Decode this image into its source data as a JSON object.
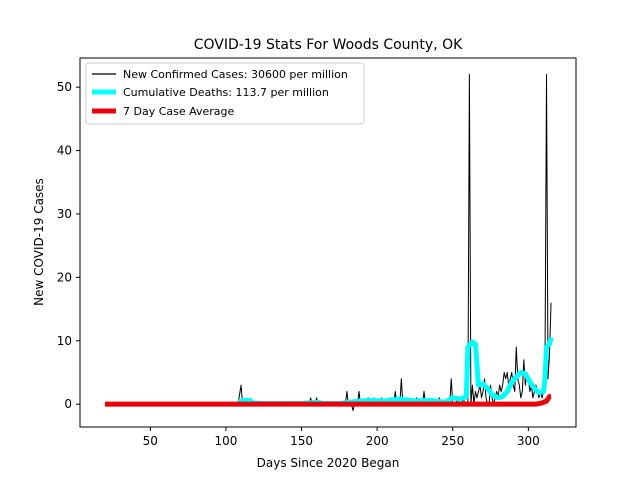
{
  "chart_data": {
    "type": "line",
    "title": "COVID-19 Stats For Woods County, OK",
    "xlabel": "Days Since 2020 Began",
    "ylabel": "New COVID-19 Cases",
    "xlim": [
      3.5,
      331.5
    ],
    "ylim": [
      -3.6,
      54.6
    ],
    "xticks": [
      50,
      100,
      150,
      200,
      250,
      300
    ],
    "yticks": [
      0,
      10,
      20,
      30,
      40,
      50
    ],
    "grid": false,
    "legend_position": "top-left",
    "series": [
      {
        "name": "New Confirmed Cases: 30600 per million",
        "color": "#000000",
        "points": [
          [
            20,
            0
          ],
          [
            108,
            0
          ],
          [
            110,
            3
          ],
          [
            111,
            0
          ],
          [
            112,
            0
          ],
          [
            155,
            0
          ],
          [
            156,
            1
          ],
          [
            157,
            0
          ],
          [
            159,
            0
          ],
          [
            160,
            1
          ],
          [
            161,
            0
          ],
          [
            179,
            0
          ],
          [
            180,
            2
          ],
          [
            181,
            0
          ],
          [
            183,
            0
          ],
          [
            184,
            -1
          ],
          [
            185,
            0
          ],
          [
            187,
            0
          ],
          [
            188,
            2
          ],
          [
            189,
            0
          ],
          [
            193,
            0
          ],
          [
            194,
            1
          ],
          [
            195,
            0
          ],
          [
            197,
            0
          ],
          [
            198,
            1
          ],
          [
            199,
            0
          ],
          [
            202,
            0
          ],
          [
            203,
            1
          ],
          [
            204,
            0
          ],
          [
            207,
            0
          ],
          [
            208,
            1
          ],
          [
            209,
            0
          ],
          [
            211,
            0
          ],
          [
            212,
            2
          ],
          [
            213,
            0
          ],
          [
            215,
            0
          ],
          [
            216,
            4
          ],
          [
            217,
            0
          ],
          [
            219,
            0
          ],
          [
            220,
            1
          ],
          [
            221,
            0
          ],
          [
            225,
            0
          ],
          [
            226,
            1
          ],
          [
            227,
            0
          ],
          [
            230,
            0
          ],
          [
            231,
            2
          ],
          [
            232,
            0
          ],
          [
            240,
            0
          ],
          [
            241,
            1
          ],
          [
            242,
            0
          ],
          [
            246,
            0
          ],
          [
            247,
            1
          ],
          [
            248,
            0
          ],
          [
            249,
            4
          ],
          [
            250,
            0
          ],
          [
            252,
            0
          ],
          [
            253,
            1
          ],
          [
            254,
            0
          ],
          [
            256,
            0
          ],
          [
            257,
            1
          ],
          [
            258,
            0
          ],
          [
            260,
            0
          ],
          [
            261,
            52
          ],
          [
            262,
            0
          ],
          [
            263,
            3
          ],
          [
            264,
            0
          ],
          [
            265,
            2
          ],
          [
            266,
            1
          ],
          [
            267,
            2
          ],
          [
            268,
            3
          ],
          [
            269,
            1
          ],
          [
            270,
            2
          ],
          [
            271,
            4
          ],
          [
            272,
            1
          ],
          [
            273,
            0
          ],
          [
            274,
            0
          ],
          [
            275,
            3
          ],
          [
            276,
            1
          ],
          [
            277,
            0
          ],
          [
            278,
            1
          ],
          [
            279,
            2
          ],
          [
            280,
            1
          ],
          [
            281,
            3
          ],
          [
            282,
            2
          ],
          [
            283,
            3
          ],
          [
            284,
            5
          ],
          [
            285,
            4
          ],
          [
            286,
            5
          ],
          [
            287,
            3
          ],
          [
            288,
            4
          ],
          [
            289,
            5
          ],
          [
            290,
            3
          ],
          [
            291,
            2
          ],
          [
            292,
            9
          ],
          [
            293,
            4
          ],
          [
            294,
            3
          ],
          [
            295,
            1
          ],
          [
            296,
            2
          ],
          [
            297,
            7
          ],
          [
            298,
            3
          ],
          [
            299,
            5
          ],
          [
            300,
            4
          ],
          [
            301,
            2
          ],
          [
            302,
            3
          ],
          [
            303,
            1
          ],
          [
            304,
            2
          ],
          [
            305,
            3
          ],
          [
            306,
            2
          ],
          [
            307,
            1
          ],
          [
            308,
            2
          ],
          [
            309,
            1
          ],
          [
            310,
            2
          ],
          [
            311,
            6
          ],
          [
            312,
            52
          ],
          [
            313,
            4
          ],
          [
            314,
            8
          ],
          [
            315,
            16
          ]
        ]
      },
      {
        "name": "Cumulative Deaths: 113.7 per million",
        "color": "#00ffff",
        "points": [
          [
            108,
            0.3
          ],
          [
            112,
            0.6
          ],
          [
            116,
            0.6
          ],
          [
            118,
            0.2
          ],
          [
            125,
            0.1
          ],
          [
            150,
            0.1
          ],
          [
            160,
            0.3
          ],
          [
            165,
            0.1
          ],
          [
            175,
            0.1
          ],
          [
            185,
            0.4
          ],
          [
            195,
            0.6
          ],
          [
            205,
            0.5
          ],
          [
            215,
            0.8
          ],
          [
            225,
            0.5
          ],
          [
            235,
            0.6
          ],
          [
            245,
            0.3
          ],
          [
            250,
            1
          ],
          [
            255,
            0.8
          ],
          [
            259,
            1.2
          ],
          [
            260,
            9
          ],
          [
            263,
            9.8
          ],
          [
            265,
            9.5
          ],
          [
            267,
            3
          ],
          [
            270,
            3.2
          ],
          [
            273,
            2.5
          ],
          [
            276,
            1.5
          ],
          [
            280,
            1
          ],
          [
            283,
            1.2
          ],
          [
            286,
            2
          ],
          [
            289,
            3.5
          ],
          [
            292,
            4.3
          ],
          [
            295,
            5
          ],
          [
            298,
            4.8
          ],
          [
            301,
            3.5
          ],
          [
            304,
            2.5
          ],
          [
            307,
            1.8
          ],
          [
            310,
            2
          ],
          [
            311,
            4
          ],
          [
            312,
            9
          ],
          [
            314,
            9.5
          ],
          [
            315,
            10.5
          ]
        ]
      },
      {
        "name": "7 Day Case Average",
        "color": "#e8000b",
        "points": [
          [
            20,
            0
          ],
          [
            305,
            0
          ],
          [
            309,
            0.2
          ],
          [
            312,
            0.5
          ],
          [
            314,
            1.2
          ],
          [
            315,
            1.2
          ]
        ]
      }
    ]
  }
}
